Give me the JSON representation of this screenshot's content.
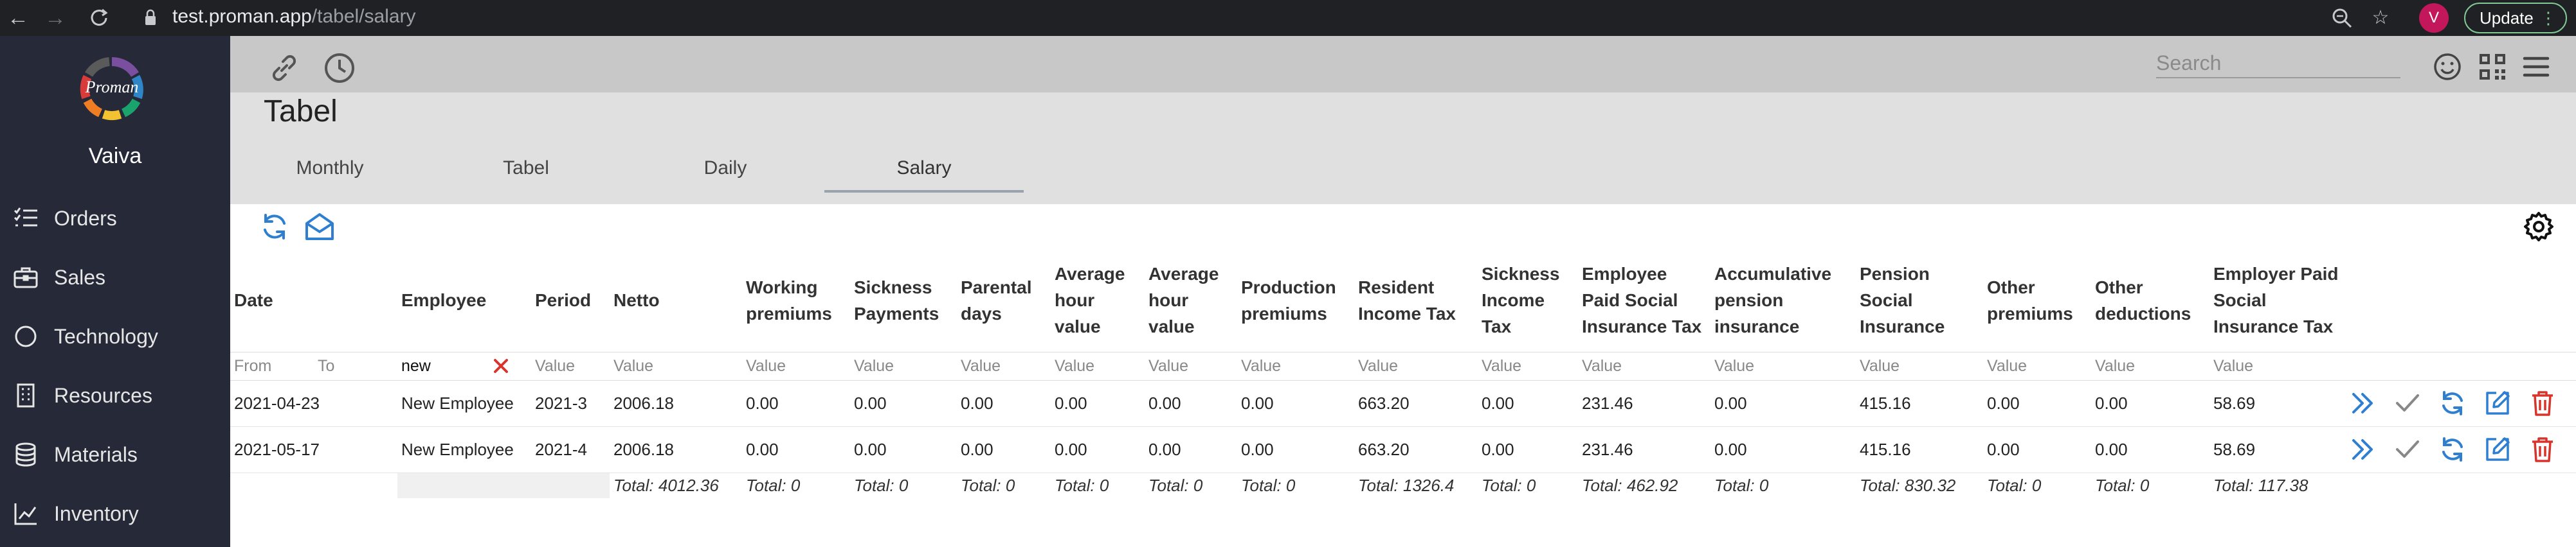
{
  "browser": {
    "url_host": "test.proman.app",
    "url_path": "/tabel/salary",
    "profile_initial": "V",
    "update_label": "Update"
  },
  "sidebar": {
    "logo_text": "Proman",
    "username": "Vaiva",
    "items": [
      {
        "label": "Orders",
        "icon": "list-icon"
      },
      {
        "label": "Sales",
        "icon": "briefcase-icon"
      },
      {
        "label": "Technology",
        "icon": "circle-icon"
      },
      {
        "label": "Resources",
        "icon": "building-icon"
      },
      {
        "label": "Materials",
        "icon": "database-icon"
      },
      {
        "label": "Inventory",
        "icon": "chart-icon"
      }
    ]
  },
  "header": {
    "search_placeholder": "Search"
  },
  "page": {
    "title": "Tabel",
    "tabs": [
      {
        "label": "Monthly",
        "active": false
      },
      {
        "label": "Tabel",
        "active": false
      },
      {
        "label": "Daily",
        "active": false
      },
      {
        "label": "Salary",
        "active": true
      }
    ]
  },
  "table": {
    "headers": {
      "date": "Date",
      "employee": "Employee",
      "period": "Period",
      "netto": "Netto",
      "working_premiums": "Working premiums",
      "sickness_payments": "Sickness Payments",
      "parental_days": "Parental days",
      "avg_hour_value_1": "Average hour value",
      "avg_hour_value_2": "Average hour value",
      "production_premiums": "Production premiums",
      "resident_income_tax": "Resident Income Tax",
      "sickness_income_tax": "Sickness Income Tax",
      "employee_paid_sit": "Employee Paid Social Insurance Tax",
      "accumulative_pension": "Accumulative pension insurance",
      "pension_social_insurance": "Pension Social Insurance",
      "other_premiums": "Other premiums",
      "other_deductions": "Other deductions",
      "employer_paid_sit": "Employer Paid Social Insurance Tax"
    },
    "filters": {
      "date_from": "From",
      "date_to": "To",
      "employee_value": "new",
      "value_placeholder": "Value"
    },
    "rows": [
      {
        "date": "2021-04-23",
        "employee": "New Employee",
        "period": "2021-3",
        "netto": "2006.18",
        "working_premiums": "0.00",
        "sickness_payments": "0.00",
        "parental_days": "0.00",
        "avg_hour_value_1": "0.00",
        "avg_hour_value_2": "0.00",
        "production_premiums": "0.00",
        "resident_income_tax": "663.20",
        "sickness_income_tax": "0.00",
        "employee_paid_sit": "231.46",
        "accumulative_pension": "0.00",
        "pension_social_insurance": "415.16",
        "other_premiums": "0.00",
        "other_deductions": "0.00",
        "employer_paid_sit": "58.69"
      },
      {
        "date": "2021-05-17",
        "employee": "New Employee",
        "period": "2021-4",
        "netto": "2006.18",
        "working_premiums": "0.00",
        "sickness_payments": "0.00",
        "parental_days": "0.00",
        "avg_hour_value_1": "0.00",
        "avg_hour_value_2": "0.00",
        "production_premiums": "0.00",
        "resident_income_tax": "663.20",
        "sickness_income_tax": "0.00",
        "employee_paid_sit": "231.46",
        "accumulative_pension": "0.00",
        "pension_social_insurance": "415.16",
        "other_premiums": "0.00",
        "other_deductions": "0.00",
        "employer_paid_sit": "58.69"
      }
    ],
    "totals": {
      "netto": "Total: 4012.36",
      "working_premiums": "Total: 0",
      "sickness_payments": "Total: 0",
      "parental_days": "Total: 0",
      "avg_hour_value_1": "Total: 0",
      "avg_hour_value_2": "Total: 0",
      "production_premiums": "Total: 0",
      "resident_income_tax": "Total: 1326.4",
      "sickness_income_tax": "Total: 0",
      "employee_paid_sit": "Total: 462.92",
      "accumulative_pension": "Total: 0",
      "pension_social_insurance": "Total: 830.32",
      "other_premiums": "Total: 0",
      "other_deductions": "Total: 0",
      "employer_paid_sit": "Total: 117.38"
    },
    "row_actions": [
      "fast-forward-icon",
      "check-icon",
      "refresh-icon",
      "edit-icon",
      "delete-icon"
    ]
  },
  "colors": {
    "sidebar_bg": "#262a38",
    "header_bg": "#c8c8c8",
    "tabs_bg": "#e0e0e0",
    "accent_blue": "#2f7fd1",
    "delete_red": "#d9342b",
    "check_gray": "#888888"
  }
}
